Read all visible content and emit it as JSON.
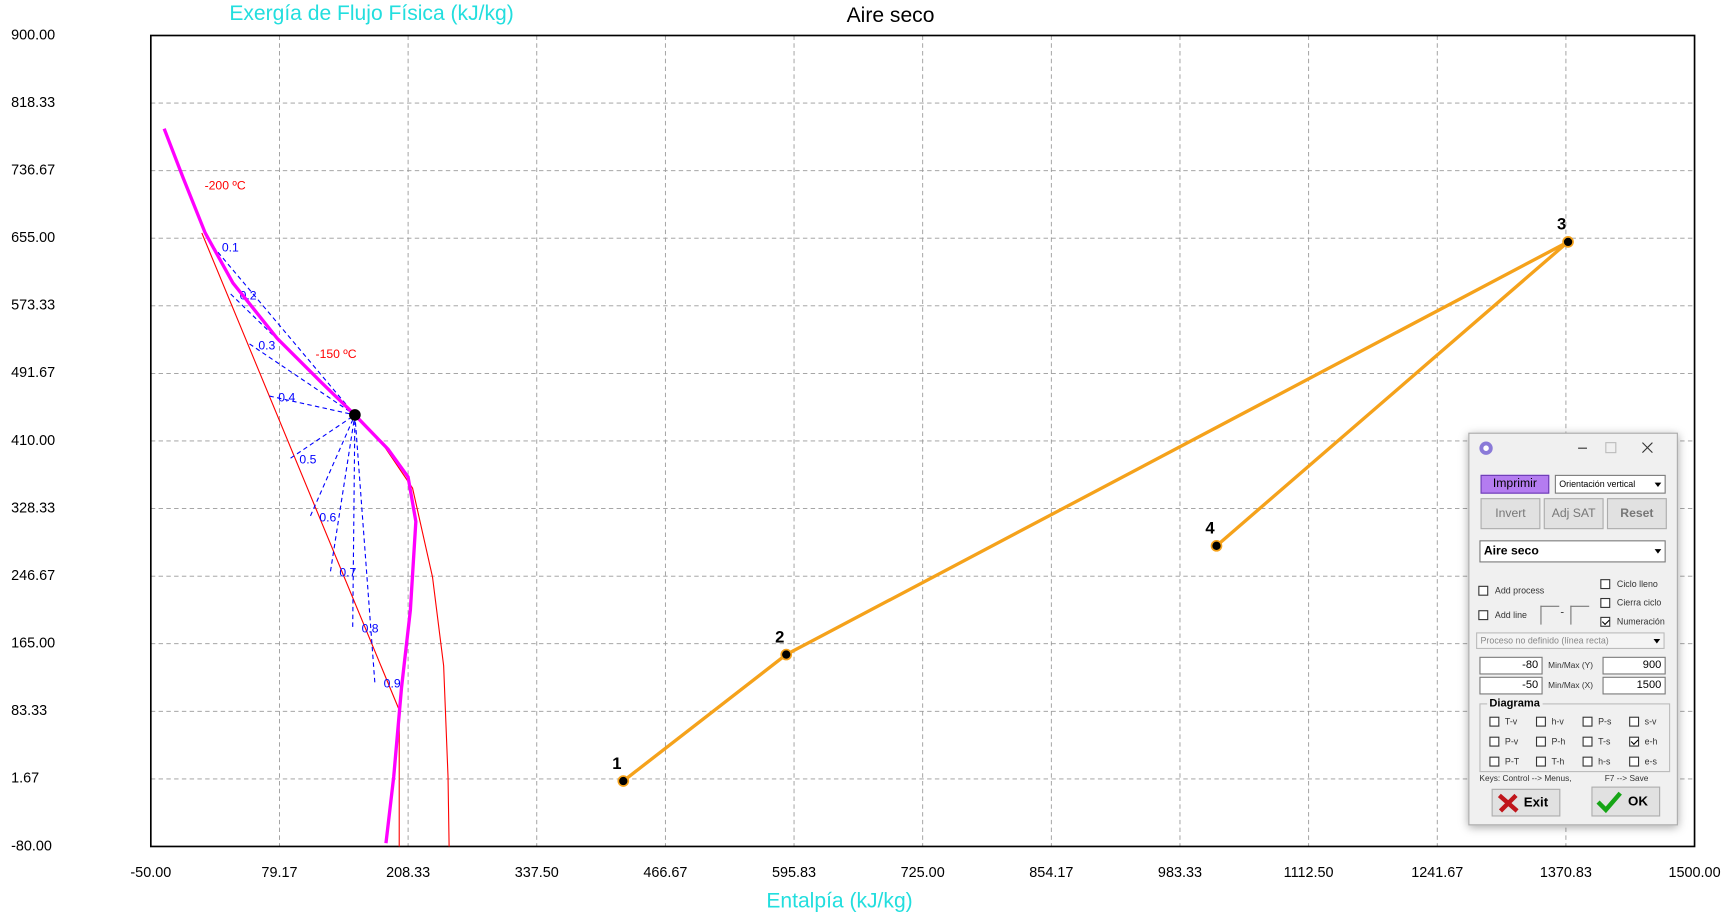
{
  "chart_data": {
    "type": "line",
    "title": "Aire seco",
    "y_label": "Exergía de Flujo Física  (kJ/kg)",
    "x_label": "Entalpía (kJ/kg)",
    "xlim": [
      -50,
      1500
    ],
    "ylim": [
      -80,
      900
    ],
    "xticks": [
      {
        "value": -50,
        "label": "-50.00"
      },
      {
        "value": 79.17,
        "label": "79.17"
      },
      {
        "value": 208.33,
        "label": "208.33"
      },
      {
        "value": 337.5,
        "label": "337.50"
      },
      {
        "value": 466.67,
        "label": "466.67"
      },
      {
        "value": 595.83,
        "label": "595.83"
      },
      {
        "value": 725,
        "label": "725.00"
      },
      {
        "value": 854.17,
        "label": "854.17"
      },
      {
        "value": 983.33,
        "label": "983.33"
      },
      {
        "value": 1112.5,
        "label": "1112.50"
      },
      {
        "value": 1241.67,
        "label": "1241.67"
      },
      {
        "value": 1370.83,
        "label": "1370.83"
      },
      {
        "value": 1500,
        "label": "1500.00"
      }
    ],
    "yticks": [
      {
        "value": -80,
        "label": "-80.00"
      },
      {
        "value": 1.67,
        "label": "1.67"
      },
      {
        "value": 83.33,
        "label": "83.33"
      },
      {
        "value": 165,
        "label": "165.00"
      },
      {
        "value": 246.67,
        "label": "246.67"
      },
      {
        "value": 328.33,
        "label": "328.33"
      },
      {
        "value": 410,
        "label": "410.00"
      },
      {
        "value": 491.67,
        "label": "491.67"
      },
      {
        "value": 573.33,
        "label": "573.33"
      },
      {
        "value": 655,
        "label": "655.00"
      },
      {
        "value": 736.67,
        "label": "736.67"
      },
      {
        "value": 818.33,
        "label": "818.33"
      },
      {
        "value": 900,
        "label": "900.00"
      }
    ],
    "grid": true,
    "series": [
      {
        "color": "#ff0000",
        "width": 1,
        "x": [
          1.2,
          199.4,
          199.4
        ],
        "values": [
          661.4,
          84.9,
          -80
        ]
      },
      {
        "color": "#ff0000",
        "width": 1,
        "x": [
          154.9,
          182.7,
          212.8,
          232.8,
          244,
          248.4,
          249.5
        ],
        "values": [
          441.5,
          406.6,
          353,
          245.8,
          138.5,
          4.5,
          -80
        ]
      },
      {
        "name": "0.1",
        "color": "#0000ff",
        "width": 1,
        "dashed": true,
        "x": [
          12.4,
          154.9
        ],
        "values": [
          645.3,
          441.5
        ]
      },
      {
        "name": "0.2",
        "color": "#0000ff",
        "width": 1,
        "dashed": true,
        "x": [
          30.2,
          154.9
        ],
        "values": [
          587.6,
          441.5
        ]
      },
      {
        "name": "0.3",
        "color": "#0000ff",
        "width": 1,
        "dashed": true,
        "x": [
          49.1,
          154.9
        ],
        "values": [
          527.3,
          441.5
        ]
      },
      {
        "name": "0.4",
        "color": "#0000ff",
        "width": 1,
        "dashed": true,
        "x": [
          69.1,
          154.9
        ],
        "values": [
          464.3,
          441.5
        ]
      },
      {
        "name": "0.5",
        "color": "#0000ff",
        "width": 1,
        "dashed": true,
        "x": [
          90.3,
          154.9
        ],
        "values": [
          389.2,
          441.5
        ]
      },
      {
        "name": "0.6",
        "color": "#0000ff",
        "width": 1,
        "dashed": true,
        "x": [
          110.3,
          154.9
        ],
        "values": [
          319.5,
          441.5
        ]
      },
      {
        "name": "0.7",
        "color": "#0000ff",
        "width": 1,
        "dashed": true,
        "x": [
          130.4,
          154.9
        ],
        "values": [
          252.5,
          441.5
        ]
      },
      {
        "name": "0.8",
        "color": "#0000ff",
        "width": 1,
        "dashed": true,
        "x": [
          152.7,
          154.9
        ],
        "values": [
          185.4,
          441.5
        ]
      },
      {
        "name": "0.9",
        "color": "#0000ff",
        "width": 1,
        "dashed": true,
        "x": [
          174.9,
          154.9
        ],
        "values": [
          118.4,
          441.5
        ]
      },
      {
        "color": "#ff00ff",
        "width": 3,
        "x": [
          -36.6,
          -17.7,
          4.6,
          32.4,
          76.9,
          121.5,
          154.9,
          188.3,
          208.3,
          216.1,
          210.6,
          201.7,
          193.9,
          186.1
        ],
        "values": [
          787.4,
          728.4,
          661.4,
          601,
          534,
          480.4,
          441.5,
          399.9,
          366.4,
          312.8,
          205.6,
          111.7,
          4.5,
          -76
        ]
      },
      {
        "color": "#f5a21b",
        "width": 3,
        "markers": true,
        "x": [
          424.4,
          588,
          1373,
          1020
        ],
        "values": [
          -0.9,
          151.9,
          650.6,
          283.3
        ],
        "point_labels": [
          "1",
          "2",
          "3",
          "4"
        ]
      },
      {
        "color": "#000000",
        "width": 0,
        "markers": true,
        "x": [
          154.9
        ],
        "values": [
          441.5
        ]
      }
    ],
    "annotations": [
      {
        "text": "-200 ºC",
        "x": 24.6,
        "y": 717.7,
        "color": "#ff0000"
      },
      {
        "text": "-150 ºC",
        "x": 136,
        "y": 513.9,
        "color": "#ff0000"
      }
    ]
  },
  "dialog": {
    "print_button": "Imprimir",
    "orientation": "Orientación vertical",
    "buttons": [
      "Invert",
      "Adj SAT",
      "Reset"
    ],
    "substance": "Aire seco",
    "options": [
      {
        "label": "Add process",
        "checked": false
      },
      {
        "label": "Ciclo lleno",
        "checked": false
      },
      {
        "label": "Cierra ciclo",
        "checked": false
      },
      {
        "label": "Add line",
        "checked": false
      },
      {
        "label": "Numeración",
        "checked": true
      }
    ],
    "line_separator": "-",
    "process": "Proceso no definido (línea recta)",
    "y_min": "-80",
    "y_label": "Min/Max (Y)",
    "y_max": "900",
    "x_min": "-50",
    "x_label": "Min/Max (X)",
    "x_max": "1500",
    "diagram_title": "Diagrama",
    "diagrams": [
      {
        "label": "T-v",
        "checked": false
      },
      {
        "label": "h-v",
        "checked": false
      },
      {
        "label": "P-s",
        "checked": false
      },
      {
        "label": "s-v",
        "checked": false
      },
      {
        "label": "P-v",
        "checked": false
      },
      {
        "label": "P-h",
        "checked": false
      },
      {
        "label": "T-s",
        "checked": false
      },
      {
        "label": "e-h",
        "checked": true
      },
      {
        "label": "P-T",
        "checked": false
      },
      {
        "label": "T-h",
        "checked": false
      },
      {
        "label": "h-s",
        "checked": false
      },
      {
        "label": "e-s",
        "checked": false
      }
    ],
    "keys": "Keys: Control --> Menus,",
    "save_key": "F7 --> Save",
    "exit": "Exit",
    "ok": "OK"
  }
}
